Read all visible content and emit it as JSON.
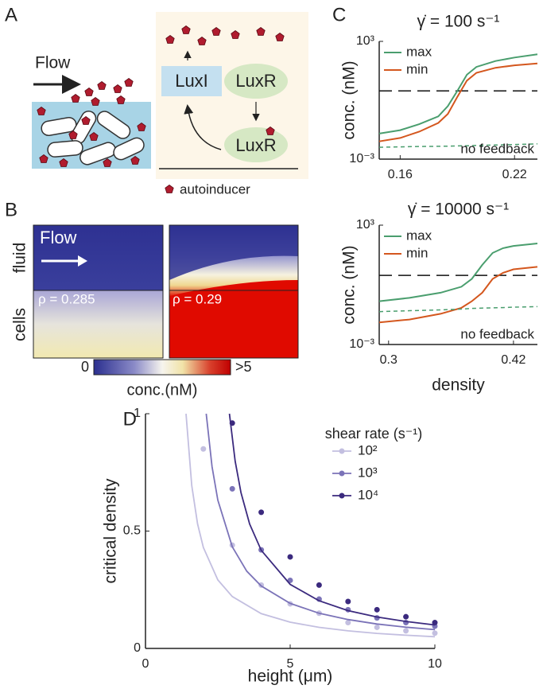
{
  "diagram": {
    "label": "A",
    "flow": "Flow",
    "nodes": [
      "LuxI",
      "LuxR",
      "LuxR"
    ],
    "legend": "autoinducer"
  },
  "heatmap": {
    "label": "B",
    "flow": "Flow",
    "rows": [
      "fluid",
      "cells"
    ],
    "panels": [
      {
        "rho": "ρ = 0.285"
      },
      {
        "rho": "ρ = 0.29"
      }
    ],
    "colorbar": {
      "label": "conc.(nM)",
      "clim": [
        0,
        5
      ],
      "ticks": [
        0,
        {
          "value": 5,
          "label": ">5"
        }
      ]
    }
  },
  "panel_label_c": "C",
  "chart_data": [
    {
      "type": "line",
      "title": "γ̇ = 100 s⁻¹",
      "y_label": "conc. (nM)",
      "log_y": true,
      "x": [
        0.149,
        0.16,
        0.17,
        0.18,
        0.185,
        0.19,
        0.195,
        0.2,
        0.21,
        0.22,
        0.232
      ],
      "series": [
        {
          "name": "max",
          "color": "#4a9e6e",
          "values": [
            0.02,
            0.03,
            0.06,
            0.15,
            0.5,
            3,
            20,
            50,
            100,
            150,
            220
          ]
        },
        {
          "name": "min",
          "color": "#d4571e",
          "values": [
            0.008,
            0.012,
            0.025,
            0.07,
            0.2,
            1.5,
            10,
            25,
            45,
            60,
            75
          ]
        },
        {
          "name": "no feedback",
          "color": "#4a9e6e",
          "dash": true,
          "values": [
            0.004,
            0.0042,
            0.0044,
            0.0045,
            0.0046,
            0.0047,
            0.0048,
            0.005,
            0.0052,
            0.0055,
            0.006
          ]
        }
      ],
      "threshold": 3,
      "xlim": [
        0.149,
        0.232
      ],
      "xticks": [
        0.16,
        0.22
      ],
      "ylim": [
        0.001,
        1000
      ],
      "yticks": [
        {
          "value": 0.001,
          "label": "10⁻³"
        },
        {
          "value": 1000,
          "label": "10³"
        }
      ]
    },
    {
      "type": "line",
      "title": "γ̇ = 10000 s⁻¹",
      "y_label": "conc. (nM)",
      "x_label": "density",
      "log_y": true,
      "x": [
        0.291,
        0.32,
        0.35,
        0.37,
        0.38,
        0.39,
        0.4,
        0.41,
        0.42,
        0.443
      ],
      "series": [
        {
          "name": "max",
          "color": "#4a9e6e",
          "values": [
            0.15,
            0.22,
            0.4,
            0.8,
            2,
            10,
            40,
            70,
            90,
            120
          ]
        },
        {
          "name": "min",
          "color": "#d4571e",
          "values": [
            0.013,
            0.018,
            0.035,
            0.07,
            0.15,
            0.4,
            2,
            4,
            6,
            8
          ]
        },
        {
          "name": "no feedback",
          "color": "#4a9e6e",
          "dash": true,
          "values": [
            0.045,
            0.05,
            0.055,
            0.06,
            0.065,
            0.068,
            0.07,
            0.072,
            0.075,
            0.08
          ]
        }
      ],
      "threshold": 3,
      "xlim": [
        0.291,
        0.443
      ],
      "xticks": [
        0.3,
        0.42
      ],
      "ylim": [
        0.001,
        1000
      ],
      "yticks": [
        {
          "value": 0.001,
          "label": "10⁻³"
        },
        {
          "value": 1000,
          "label": "10³"
        }
      ]
    },
    {
      "type": "scatter",
      "label": "D",
      "x_label": "height (μm)",
      "y_label": "critical density",
      "legend_title": "shear rate (s⁻¹)",
      "series": [
        {
          "name": "10²",
          "color": "#c3bfe0",
          "x": [
            2,
            3,
            4,
            5,
            6,
            7,
            8,
            9,
            10
          ],
          "values": [
            0.85,
            0.44,
            0.27,
            0.19,
            0.15,
            0.11,
            0.09,
            0.075,
            0.065
          ],
          "fit_x": [
            1.4,
            1.6,
            1.8,
            2,
            2.5,
            3,
            4,
            5,
            6,
            7,
            8,
            9,
            10
          ],
          "fit_values": [
            1.0,
            0.694,
            0.531,
            0.43,
            0.292,
            0.221,
            0.148,
            0.112,
            0.0897,
            0.0748,
            0.0642,
            0.0563,
            0.05
          ]
        },
        {
          "name": "10³",
          "color": "#7b73b8",
          "x": [
            3,
            4,
            5,
            6,
            7,
            8,
            9,
            10
          ],
          "values": [
            0.68,
            0.42,
            0.29,
            0.21,
            0.165,
            0.13,
            0.11,
            0.095
          ],
          "fit_x": [
            2.1,
            2.3,
            2.5,
            3,
            3.5,
            4,
            5,
            6,
            7,
            8,
            9,
            10
          ],
          "fit_values": [
            1.0,
            0.775,
            0.632,
            0.433,
            0.329,
            0.266,
            0.192,
            0.15,
            0.123,
            0.104,
            0.0906,
            0.08
          ]
        },
        {
          "name": "10⁴",
          "color": "#3b2a7e",
          "x": [
            3,
            4,
            5,
            6,
            7,
            8,
            9,
            10
          ],
          "values": [
            0.96,
            0.58,
            0.39,
            0.27,
            0.2,
            0.165,
            0.135,
            0.11
          ],
          "fit_x": [
            2.9,
            3.1,
            3.3,
            3.6,
            4,
            5,
            6,
            7,
            8,
            9,
            10
          ],
          "fit_values": [
            1.0,
            0.798,
            0.664,
            0.53,
            0.418,
            0.273,
            0.203,
            0.161,
            0.134,
            0.115,
            0.1
          ]
        }
      ],
      "xlim": [
        0,
        10
      ],
      "xticks": [
        0,
        5,
        10
      ],
      "ylim": [
        0,
        1
      ],
      "yticks": [
        0,
        0.5,
        1
      ]
    }
  ]
}
